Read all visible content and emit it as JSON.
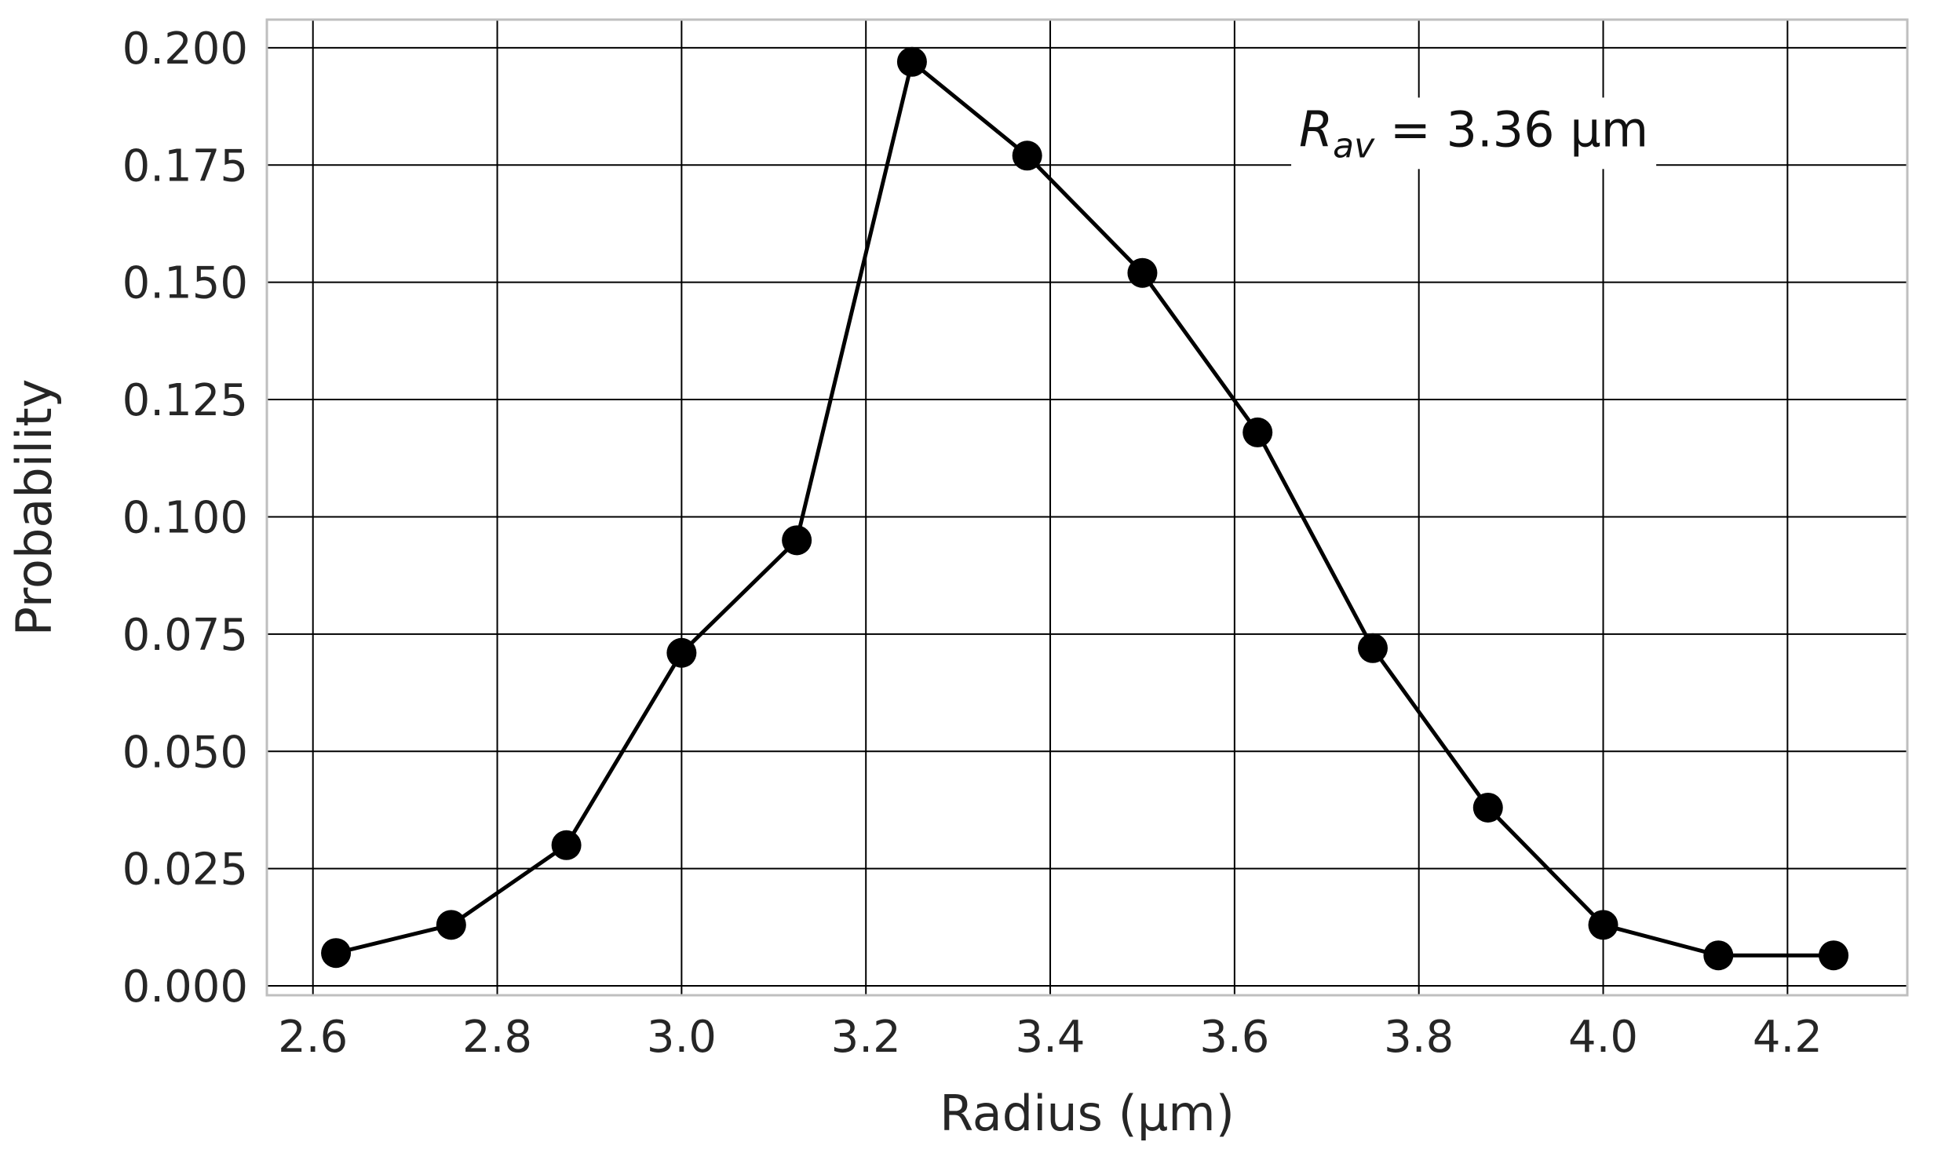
{
  "chart_data": {
    "type": "line",
    "title": "",
    "xlabel": "Radius (µm)",
    "ylabel": "Probability",
    "xlim": [
      2.55,
      4.33
    ],
    "ylim": [
      -0.002,
      0.206
    ],
    "x_ticks": [
      2.6,
      2.8,
      3.0,
      3.2,
      3.4,
      3.6,
      3.8,
      4.0,
      4.2
    ],
    "x_tick_labels": [
      "2.6",
      "2.8",
      "3.0",
      "3.2",
      "3.4",
      "3.6",
      "3.8",
      "4.0",
      "4.2"
    ],
    "y_ticks": [
      0.0,
      0.025,
      0.05,
      0.075,
      0.1,
      0.125,
      0.15,
      0.175,
      0.2
    ],
    "y_tick_labels": [
      "0.000",
      "0.025",
      "0.050",
      "0.075",
      "0.100",
      "0.125",
      "0.150",
      "0.175",
      "0.200"
    ],
    "grid": true,
    "series": [
      {
        "x": [
          2.625,
          2.75,
          2.875,
          3.0,
          3.125,
          3.25,
          3.375,
          3.5,
          3.625,
          3.75,
          3.875,
          4.0,
          4.125,
          4.25
        ],
        "y": [
          0.007,
          0.013,
          0.03,
          0.071,
          0.095,
          0.197,
          0.177,
          0.152,
          0.118,
          0.072,
          0.038,
          0.013,
          0.0065,
          0.0065
        ],
        "color": "#000000",
        "marker": "circle"
      }
    ],
    "annotation": {
      "symbol": "R",
      "subscript": "av",
      "text": " = 3.36 µm",
      "x": 3.67,
      "y": 0.179
    }
  },
  "colors": {
    "grid": "#000000",
    "series": "#000000",
    "text": "#262626",
    "background": "#ffffff"
  }
}
